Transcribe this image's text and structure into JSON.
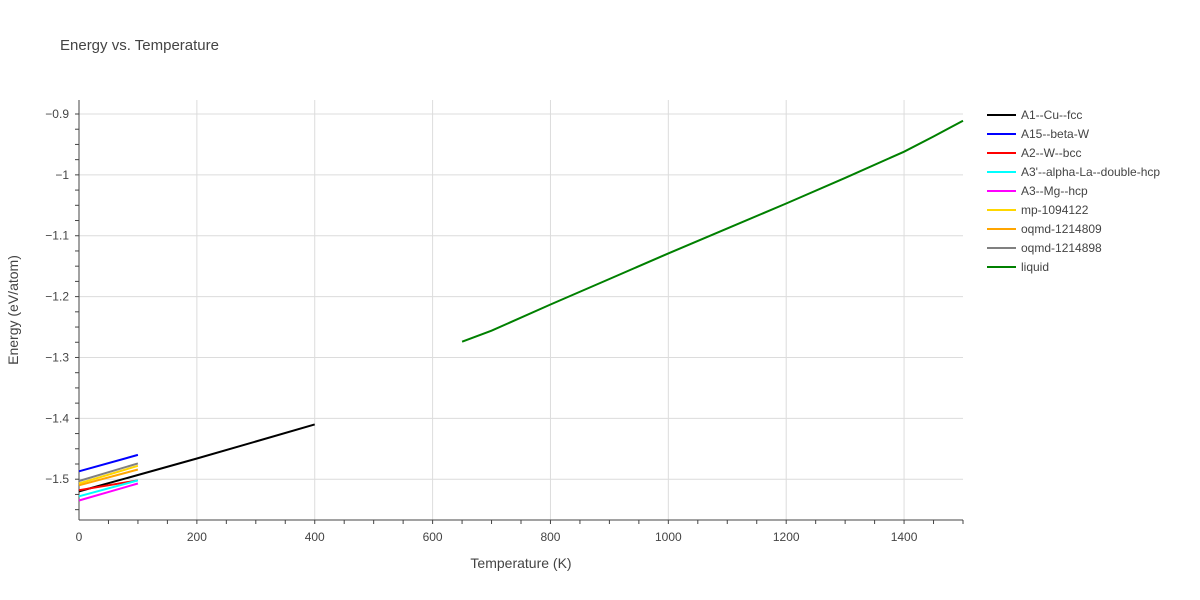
{
  "chart_data": {
    "type": "line",
    "title": "Energy vs. Temperature",
    "xlabel": "Temperature (K)",
    "ylabel": "Energy (eV/atom)",
    "xlim": [
      0,
      1500
    ],
    "ylim": [
      -1.567,
      -0.877
    ],
    "xticks": [
      0,
      200,
      400,
      600,
      800,
      1000,
      1200,
      1400
    ],
    "xtick_labels": [
      "0",
      "200",
      "400",
      "600",
      "800",
      "1000",
      "1200",
      "1400"
    ],
    "yticks": [
      -1.5,
      -1.4,
      -1.3,
      -1.2,
      -1.1,
      -1.0,
      -0.9
    ],
    "ytick_labels": [
      "−1.5",
      "−1.4",
      "−1.3",
      "−1.2",
      "−1.1",
      "−1",
      "−0.9"
    ],
    "grid": true,
    "legend_position": "right",
    "series": [
      {
        "name": "A1--Cu--fcc",
        "color": "#000000",
        "x": [
          0,
          100,
          200,
          300,
          400
        ],
        "y": [
          -1.52,
          -1.493,
          -1.466,
          -1.438,
          -1.41
        ]
      },
      {
        "name": "A15--beta-W",
        "color": "#0000ff",
        "x": [
          0,
          100
        ],
        "y": [
          -1.487,
          -1.46
        ]
      },
      {
        "name": "A2--W--bcc",
        "color": "#ff0000",
        "x": [
          0,
          100
        ],
        "y": [
          -1.518,
          -1.502
        ]
      },
      {
        "name": "A3'--alpha-La--double-hcp",
        "color": "#00ffff",
        "x": [
          0,
          100
        ],
        "y": [
          -1.528,
          -1.502
        ]
      },
      {
        "name": "A3--Mg--hcp",
        "color": "#ff00ff",
        "x": [
          0,
          100
        ],
        "y": [
          -1.535,
          -1.507
        ]
      },
      {
        "name": "mp-1094122",
        "color": "#ffd700",
        "x": [
          0,
          100
        ],
        "y": [
          -1.507,
          -1.478
        ]
      },
      {
        "name": "oqmd-1214809",
        "color": "#ffa500",
        "x": [
          0,
          100
        ],
        "y": [
          -1.51,
          -1.484
        ]
      },
      {
        "name": "oqmd-1214898",
        "color": "#808080",
        "x": [
          0,
          100
        ],
        "y": [
          -1.503,
          -1.474
        ]
      },
      {
        "name": "liquid",
        "color": "#008000",
        "x": [
          650,
          700,
          800,
          900,
          1000,
          1100,
          1200,
          1300,
          1400,
          1450,
          1500
        ],
        "y": [
          -1.274,
          -1.256,
          -1.213,
          -1.171,
          -1.129,
          -1.088,
          -1.047,
          -1.005,
          -0.962,
          -0.937,
          -0.911
        ]
      }
    ]
  }
}
